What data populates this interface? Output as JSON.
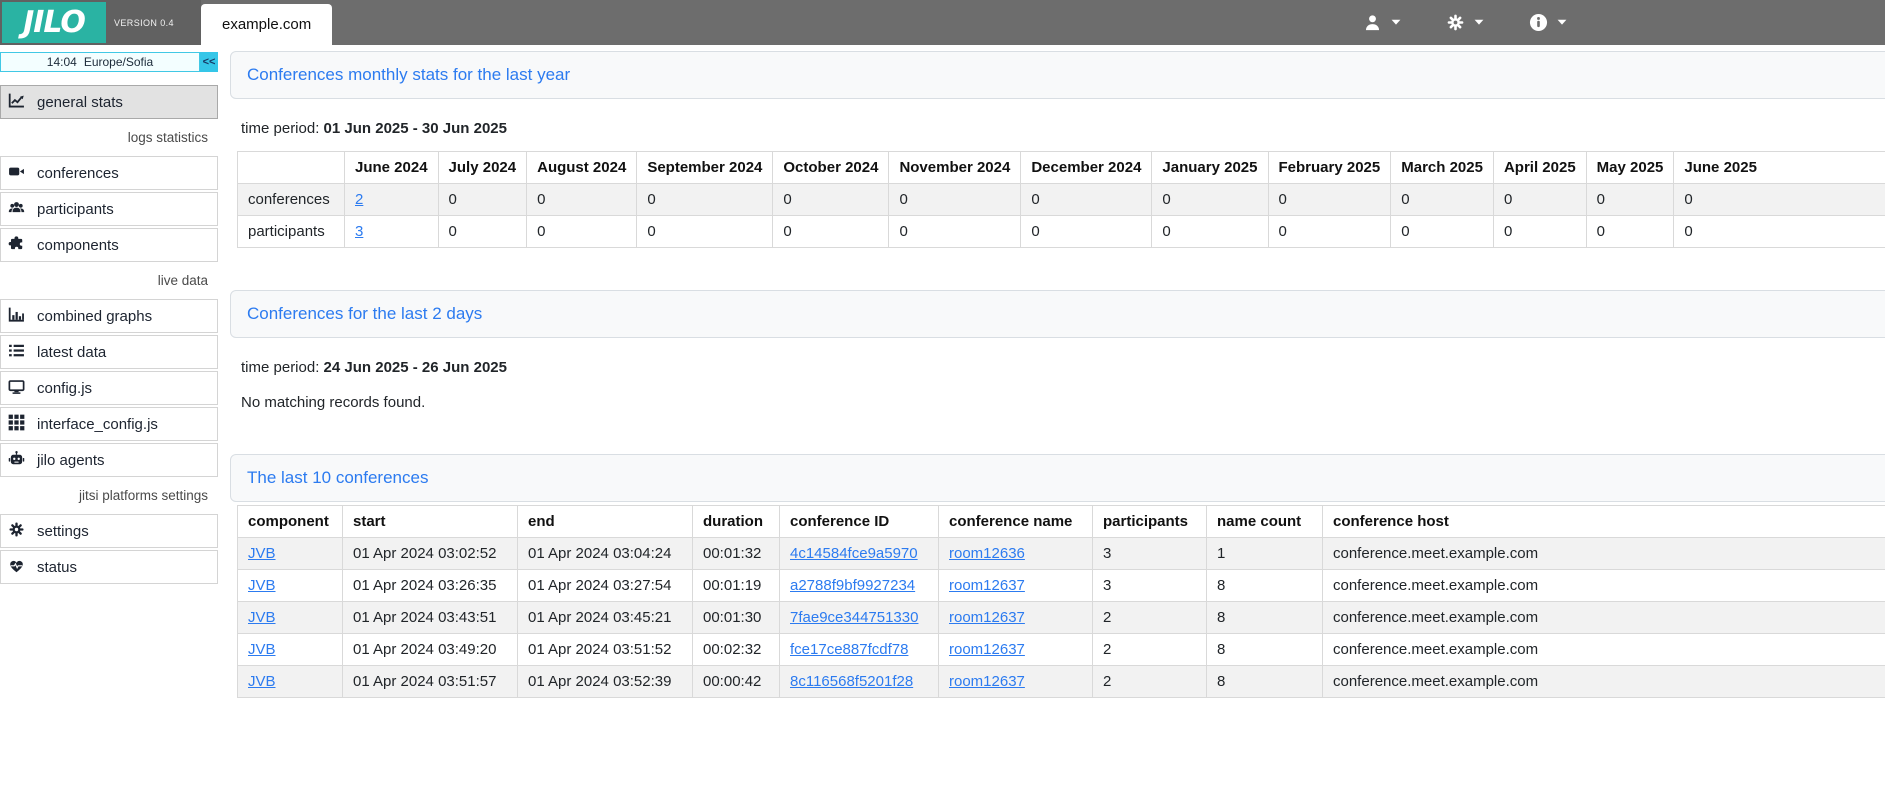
{
  "colors": {
    "brand_teal": "#2ab3a3",
    "topbar_gray": "#6d6d6d",
    "accent_cyan": "#35c6e8",
    "link_blue": "#2c7bf0",
    "stripe_gray": "#f2f2f2"
  },
  "topbar": {
    "logo_text": "JILO",
    "version_label": "VERSION 0.4",
    "site_tab": "example.com",
    "menus": [
      {
        "icon": "user-icon",
        "name": "user-menu"
      },
      {
        "icon": "gear-icon",
        "name": "platform-menu"
      },
      {
        "icon": "info-icon",
        "name": "info-menu"
      }
    ]
  },
  "sidebar": {
    "clock_time": "14:04",
    "clock_timezone": "Europe/Sofia",
    "collapse_button": "<<",
    "groups": [
      {
        "label": "",
        "items": [
          {
            "icon": "chart-line-icon",
            "label": "general stats",
            "active": true
          }
        ]
      },
      {
        "label": "logs statistics",
        "items": [
          {
            "icon": "video-camera-icon",
            "label": "conferences"
          },
          {
            "icon": "users-icon",
            "label": "participants"
          },
          {
            "icon": "puzzle-icon",
            "label": "components"
          }
        ]
      },
      {
        "label": "live data",
        "items": [
          {
            "icon": "bar-chart-icon",
            "label": "combined graphs"
          },
          {
            "icon": "list-icon",
            "label": "latest data"
          },
          {
            "icon": "monitor-icon",
            "label": "config.js"
          },
          {
            "icon": "grid-icon",
            "label": "interface_config.js"
          },
          {
            "icon": "robot-icon",
            "label": "jilo agents"
          }
        ]
      },
      {
        "label": "jitsi platforms settings",
        "items": [
          {
            "icon": "gear-icon",
            "label": "settings"
          },
          {
            "icon": "heart-pulse-icon",
            "label": "status"
          }
        ]
      }
    ]
  },
  "main": {
    "monthly": {
      "title": "Conferences monthly stats for the last year",
      "time_period_label": "time period:",
      "time_period": "01 Jun 2025 - 30 Jun 2025",
      "table": {
        "columns": [
          "",
          "June 2024",
          "July 2024",
          "August 2024",
          "September 2024",
          "October 2024",
          "November 2024",
          "December 2024",
          "January 2025",
          "February 2025",
          "March 2025",
          "April 2025",
          "May 2025",
          "June 2025"
        ],
        "link_columns": [
          1
        ],
        "rows": [
          [
            "conferences",
            "2",
            "0",
            "0",
            "0",
            "0",
            "0",
            "0",
            "0",
            "0",
            "0",
            "0",
            "0",
            "0"
          ],
          [
            "participants",
            "3",
            "0",
            "0",
            "0",
            "0",
            "0",
            "0",
            "0",
            "0",
            "0",
            "0",
            "0",
            "0"
          ]
        ]
      }
    },
    "last2days": {
      "title": "Conferences for the last 2 days",
      "time_period_label": "time period:",
      "time_period": "24 Jun 2025 - 26 Jun 2025",
      "empty_message": "No matching records found."
    },
    "last10": {
      "title": "The last 10 conferences",
      "table": {
        "columns": [
          "component",
          "start",
          "end",
          "duration",
          "conference ID",
          "conference name",
          "participants",
          "name count",
          "conference host"
        ],
        "link_columns": [
          0,
          4,
          5
        ],
        "rows": [
          [
            "JVB",
            "01 Apr 2024 03:02:52",
            "01 Apr 2024 03:04:24",
            "00:01:32",
            "4c14584fce9a5970",
            "room12636",
            "3",
            "1",
            "conference.meet.example.com"
          ],
          [
            "JVB",
            "01 Apr 2024 03:26:35",
            "01 Apr 2024 03:27:54",
            "00:01:19",
            "a2788f9bf9927234",
            "room12637",
            "3",
            "8",
            "conference.meet.example.com"
          ],
          [
            "JVB",
            "01 Apr 2024 03:43:51",
            "01 Apr 2024 03:45:21",
            "00:01:30",
            "7fae9ce344751330",
            "room12637",
            "2",
            "8",
            "conference.meet.example.com"
          ],
          [
            "JVB",
            "01 Apr 2024 03:49:20",
            "01 Apr 2024 03:51:52",
            "00:02:32",
            "fce17ce887fcdf78",
            "room12637",
            "2",
            "8",
            "conference.meet.example.com"
          ],
          [
            "JVB",
            "01 Apr 2024 03:51:57",
            "01 Apr 2024 03:52:39",
            "00:00:42",
            "8c116568f5201f28",
            "room12637",
            "2",
            "8",
            "conference.meet.example.com"
          ]
        ]
      }
    }
  }
}
